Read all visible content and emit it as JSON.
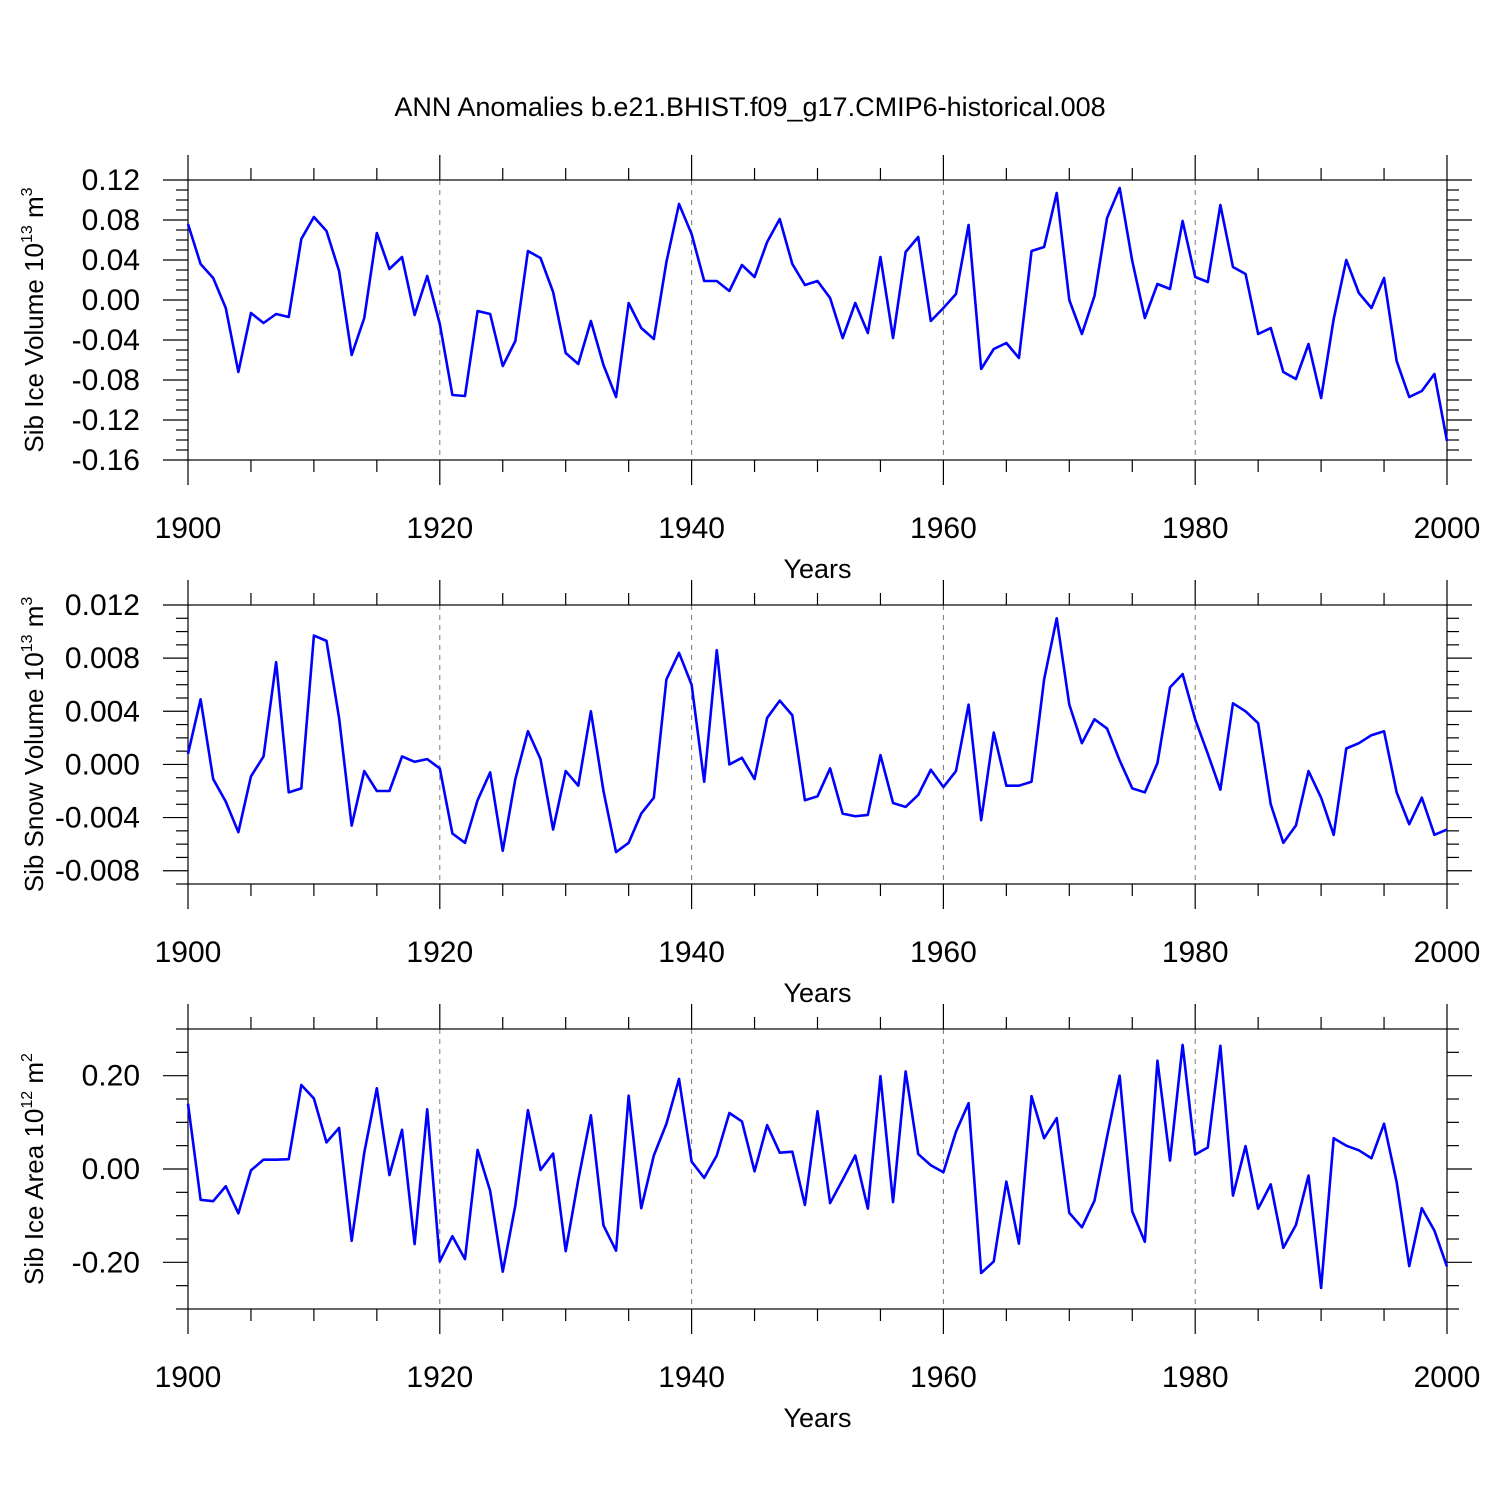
{
  "title": "ANN Anomalies b.e21.BHIST.f09_g17.CMIP6-historical.008",
  "line_color": "#0000ff",
  "chart_data": [
    {
      "type": "line",
      "title": "ANN Anomalies b.e21.BHIST.f09_g17.CMIP6-historical.008",
      "ylabel_main": "Sib Ice Volume 10",
      "ylabel_exp": "13",
      "ylabel_unit": " m",
      "ylabel_unit_exp": "3",
      "xlabel": "Years",
      "xlim": [
        1900,
        2000
      ],
      "ylim": [
        -0.16,
        0.12
      ],
      "xticks": [
        1900,
        1920,
        1940,
        1960,
        1980,
        2000
      ],
      "xtick_labels": [
        "1900",
        "1920",
        "1940",
        "1960",
        "1980",
        "2000"
      ],
      "yticks": [
        -0.16,
        -0.12,
        -0.08,
        -0.04,
        0.0,
        0.04,
        0.08,
        0.12
      ],
      "ytick_labels": [
        "-0.16",
        "-0.12",
        "-0.08",
        "-0.04",
        "0.00",
        "0.04",
        "0.08",
        "0.12"
      ],
      "x_start": 1900,
      "values": [
        0.076,
        0.036,
        0.022,
        -0.008,
        -0.072,
        -0.013,
        -0.023,
        -0.014,
        -0.017,
        0.061,
        0.083,
        0.069,
        0.029,
        -0.055,
        -0.018,
        0.067,
        0.031,
        0.043,
        -0.015,
        0.024,
        -0.024,
        -0.095,
        -0.096,
        -0.011,
        -0.014,
        -0.066,
        -0.041,
        0.049,
        0.042,
        0.008,
        -0.053,
        -0.064,
        -0.021,
        -0.065,
        -0.097,
        -0.003,
        -0.028,
        -0.039,
        0.038,
        0.096,
        0.066,
        0.019,
        0.019,
        0.009,
        0.035,
        0.023,
        0.058,
        0.081,
        0.036,
        0.015,
        0.019,
        0.002,
        -0.038,
        -0.003,
        -0.033,
        0.043,
        -0.038,
        0.048,
        0.063,
        -0.021,
        -0.008,
        0.006,
        0.075,
        -0.069,
        -0.049,
        -0.043,
        -0.058,
        0.049,
        0.053,
        0.107,
        0.0,
        -0.034,
        0.004,
        0.082,
        0.112,
        0.039,
        -0.018,
        0.016,
        0.011,
        0.079,
        0.023,
        0.018,
        0.095,
        0.033,
        0.026,
        -0.034,
        -0.028,
        -0.072,
        -0.079,
        -0.044,
        -0.098,
        -0.019,
        0.04,
        0.007,
        -0.008,
        0.022,
        -0.061,
        -0.097,
        -0.091,
        -0.074,
        -0.141
      ]
    },
    {
      "type": "line",
      "ylabel_main": "Sib Snow Volume 10",
      "ylabel_exp": "13",
      "ylabel_unit": " m",
      "ylabel_unit_exp": "3",
      "xlabel": "Years",
      "xlim": [
        1900,
        2000
      ],
      "ylim": [
        -0.009,
        0.012
      ],
      "xticks": [
        1900,
        1920,
        1940,
        1960,
        1980,
        2000
      ],
      "xtick_labels": [
        "1900",
        "1920",
        "1940",
        "1960",
        "1980",
        "2000"
      ],
      "yticks": [
        -0.008,
        -0.004,
        0.0,
        0.004,
        0.008,
        0.012
      ],
      "ytick_labels": [
        "-0.008",
        "-0.004",
        "0.000",
        "0.004",
        "0.008",
        "0.012"
      ],
      "x_start": 1900,
      "values": [
        0.0008,
        0.0049,
        -0.0011,
        -0.0028,
        -0.0051,
        -0.0009,
        0.0006,
        0.0077,
        -0.0021,
        -0.0018,
        0.0097,
        0.0093,
        0.0035,
        -0.0046,
        -0.0005,
        -0.002,
        -0.002,
        0.0006,
        0.0002,
        0.0004,
        -0.0003,
        -0.0052,
        -0.0059,
        -0.0027,
        -0.0006,
        -0.0065,
        -0.0011,
        0.0025,
        0.0004,
        -0.0049,
        -0.0005,
        -0.0016,
        0.004,
        -0.002,
        -0.0066,
        -0.0059,
        -0.0037,
        -0.0025,
        0.0064,
        0.0084,
        0.006,
        -0.0013,
        0.0086,
        0.0,
        0.0005,
        -0.0011,
        0.0035,
        0.0048,
        0.0037,
        -0.0027,
        -0.0024,
        -0.0003,
        -0.0037,
        -0.0039,
        -0.0038,
        0.0007,
        -0.0029,
        -0.0032,
        -0.0023,
        -0.0004,
        -0.0017,
        -0.0005,
        0.0045,
        -0.0042,
        0.0024,
        -0.0016,
        -0.0016,
        -0.0013,
        0.0064,
        0.011,
        0.0045,
        0.0016,
        0.0034,
        0.0027,
        0.0003,
        -0.0018,
        -0.0021,
        0.0001,
        0.0058,
        0.0068,
        0.0034,
        0.0008,
        -0.0019,
        0.0046,
        0.004,
        0.0031,
        -0.003,
        -0.0059,
        -0.0046,
        -0.0005,
        -0.0025,
        -0.0053,
        0.0012,
        0.0016,
        0.0022,
        0.0025,
        -0.0021,
        -0.0045,
        -0.0025,
        -0.0053,
        -0.0049
      ]
    },
    {
      "type": "line",
      "ylabel_main": "Sib Ice Area 10",
      "ylabel_exp": "12",
      "ylabel_unit": " m",
      "ylabel_unit_exp": "2",
      "xlabel": "Years",
      "xlim": [
        1900,
        2000
      ],
      "ylim": [
        -0.3,
        0.3
      ],
      "xticks": [
        1900,
        1920,
        1940,
        1960,
        1980,
        2000
      ],
      "xtick_labels": [
        "1900",
        "1920",
        "1940",
        "1960",
        "1980",
        "2000"
      ],
      "yticks": [
        -0.2,
        0.0,
        0.2
      ],
      "ytick_labels": [
        "-0.20",
        "0.00",
        "0.20"
      ],
      "x_start": 1900,
      "values": [
        0.14,
        -0.066,
        -0.069,
        -0.037,
        -0.095,
        -0.003,
        0.02,
        0.02,
        0.021,
        0.18,
        0.151,
        0.057,
        0.088,
        -0.154,
        0.035,
        0.173,
        -0.013,
        0.084,
        -0.161,
        0.128,
        -0.198,
        -0.144,
        -0.193,
        0.041,
        -0.047,
        -0.22,
        -0.078,
        0.126,
        -0.002,
        0.033,
        -0.176,
        -0.023,
        0.115,
        -0.121,
        -0.175,
        0.157,
        -0.084,
        0.029,
        0.097,
        0.193,
        0.016,
        -0.019,
        0.029,
        0.12,
        0.102,
        -0.005,
        0.094,
        0.035,
        0.037,
        -0.077,
        0.124,
        -0.073,
        -0.023,
        0.029,
        -0.085,
        0.199,
        -0.071,
        0.209,
        0.032,
        0.008,
        -0.007,
        0.08,
        0.141,
        -0.223,
        -0.198,
        -0.027,
        -0.16,
        0.156,
        0.066,
        0.109,
        -0.094,
        -0.125,
        -0.068,
        0.069,
        0.2,
        -0.091,
        -0.156,
        0.232,
        0.018,
        0.266,
        0.031,
        0.046,
        0.264,
        -0.057,
        0.049,
        -0.085,
        -0.033,
        -0.169,
        -0.12,
        -0.014,
        -0.255,
        0.066,
        0.05,
        0.04,
        0.023,
        0.097,
        -0.028,
        -0.208,
        -0.084,
        -0.132,
        -0.209
      ]
    }
  ]
}
